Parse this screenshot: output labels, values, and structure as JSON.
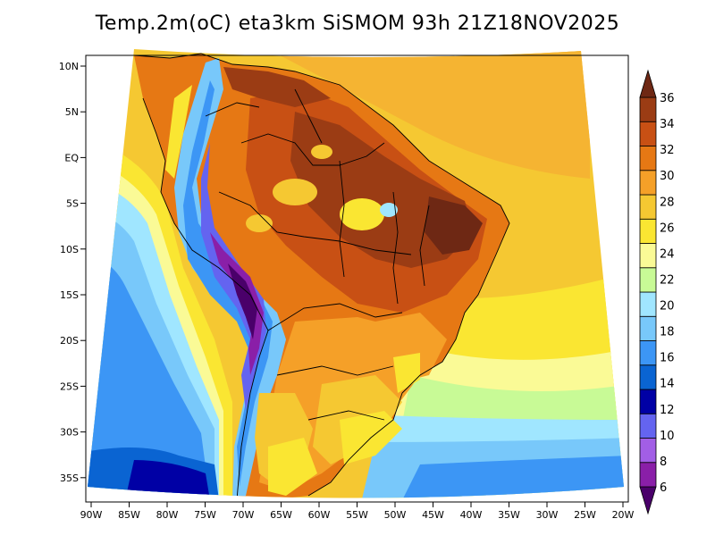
{
  "title": "Temp.2m(oC) eta3km SiSMOM 93h 21Z18NOV2025",
  "map": {
    "variable": "2 m temperature",
    "units": "°C",
    "lat_labels": [
      "10N",
      "5N",
      "EQ",
      "5S",
      "10S",
      "15S",
      "20S",
      "25S",
      "30S",
      "35S"
    ],
    "lon_labels": [
      "90W",
      "85W",
      "80W",
      "75W",
      "70W",
      "65W",
      "60W",
      "55W",
      "50W",
      "45W",
      "40W",
      "35W",
      "30W",
      "25W",
      "20W"
    ]
  },
  "colorbar": {
    "levels": [
      "6",
      "8",
      "10",
      "12",
      "14",
      "16",
      "18",
      "20",
      "22",
      "24",
      "26",
      "28",
      "30",
      "32",
      "34",
      "36"
    ],
    "colors": [
      "#4a006a",
      "#8a1fa8",
      "#a25ee6",
      "#6464f0",
      "#0000a5",
      "#0a64d2",
      "#3c96f5",
      "#78c8fa",
      "#a0e6ff",
      "#c8fa96",
      "#fafa96",
      "#fae632",
      "#f5c832",
      "#f5a028",
      "#e67814",
      "#c85014",
      "#9b3c14",
      "#6e2814"
    ]
  }
}
